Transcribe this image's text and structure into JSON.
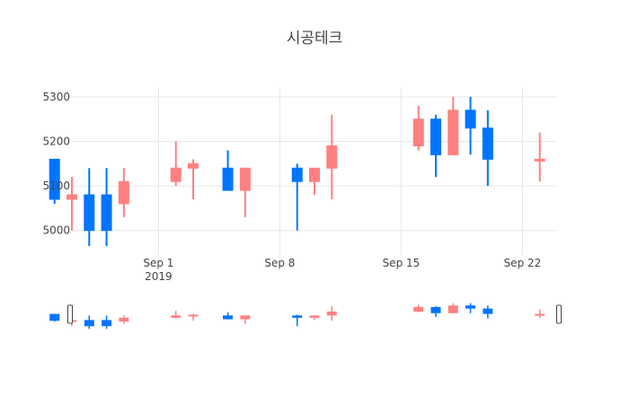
{
  "chart_data": {
    "type": "candlestick",
    "title": "시공테크",
    "colors": {
      "increasing": "#ff8080",
      "decreasing": "#0074ff",
      "grid": "#e6e6e6",
      "text": "#444444"
    },
    "grid": true,
    "rangeslider": true,
    "x_range": [
      "2019-08-27",
      "2019-09-24"
    ],
    "y_range": [
      4945,
      5320
    ],
    "y_ticks": [
      5000,
      5100,
      5200,
      5300
    ],
    "y_tick_labels": [
      "5000",
      "5100",
      "5200",
      "5300"
    ],
    "x_ticks": [
      "2019-09-01",
      "2019-09-08",
      "2019-09-15",
      "2019-09-22"
    ],
    "x_tick_labels": [
      "Sep 1",
      "Sep 8",
      "Sep 15",
      "Sep 22"
    ],
    "x_tick_sublabel": "2019",
    "candles": [
      {
        "date": "2019-08-26",
        "open": 5160,
        "high": 5160,
        "low": 5060,
        "close": 5070
      },
      {
        "date": "2019-08-27",
        "open": 5070,
        "high": 5120,
        "low": 5000,
        "close": 5080
      },
      {
        "date": "2019-08-28",
        "open": 5080,
        "high": 5140,
        "low": 4965,
        "close": 5000
      },
      {
        "date": "2019-08-29",
        "open": 5080,
        "high": 5140,
        "low": 4965,
        "close": 5000
      },
      {
        "date": "2019-08-30",
        "open": 5060,
        "high": 5140,
        "low": 5030,
        "close": 5110
      },
      {
        "date": "2019-09-02",
        "open": 5110,
        "high": 5200,
        "low": 5100,
        "close": 5140
      },
      {
        "date": "2019-09-03",
        "open": 5140,
        "high": 5160,
        "low": 5070,
        "close": 5150
      },
      {
        "date": "2019-09-05",
        "open": 5140,
        "high": 5180,
        "low": 5090,
        "close": 5090
      },
      {
        "date": "2019-09-06",
        "open": 5090,
        "high": 5140,
        "low": 5030,
        "close": 5140
      },
      {
        "date": "2019-09-09",
        "open": 5140,
        "high": 5150,
        "low": 5000,
        "close": 5110
      },
      {
        "date": "2019-09-10",
        "open": 5110,
        "high": 5140,
        "low": 5080,
        "close": 5140
      },
      {
        "date": "2019-09-11",
        "open": 5140,
        "high": 5260,
        "low": 5070,
        "close": 5190
      },
      {
        "date": "2019-09-16",
        "open": 5190,
        "high": 5280,
        "low": 5180,
        "close": 5250
      },
      {
        "date": "2019-09-17",
        "open": 5250,
        "high": 5260,
        "low": 5120,
        "close": 5170
      },
      {
        "date": "2019-09-18",
        "open": 5170,
        "high": 5300,
        "low": 5170,
        "close": 5270
      },
      {
        "date": "2019-09-19",
        "open": 5270,
        "high": 5300,
        "low": 5170,
        "close": 5230
      },
      {
        "date": "2019-09-20",
        "open": 5230,
        "high": 5270,
        "low": 5100,
        "close": 5160
      },
      {
        "date": "2019-09-23",
        "open": 5160,
        "high": 5220,
        "low": 5110,
        "close": 5160
      }
    ]
  }
}
